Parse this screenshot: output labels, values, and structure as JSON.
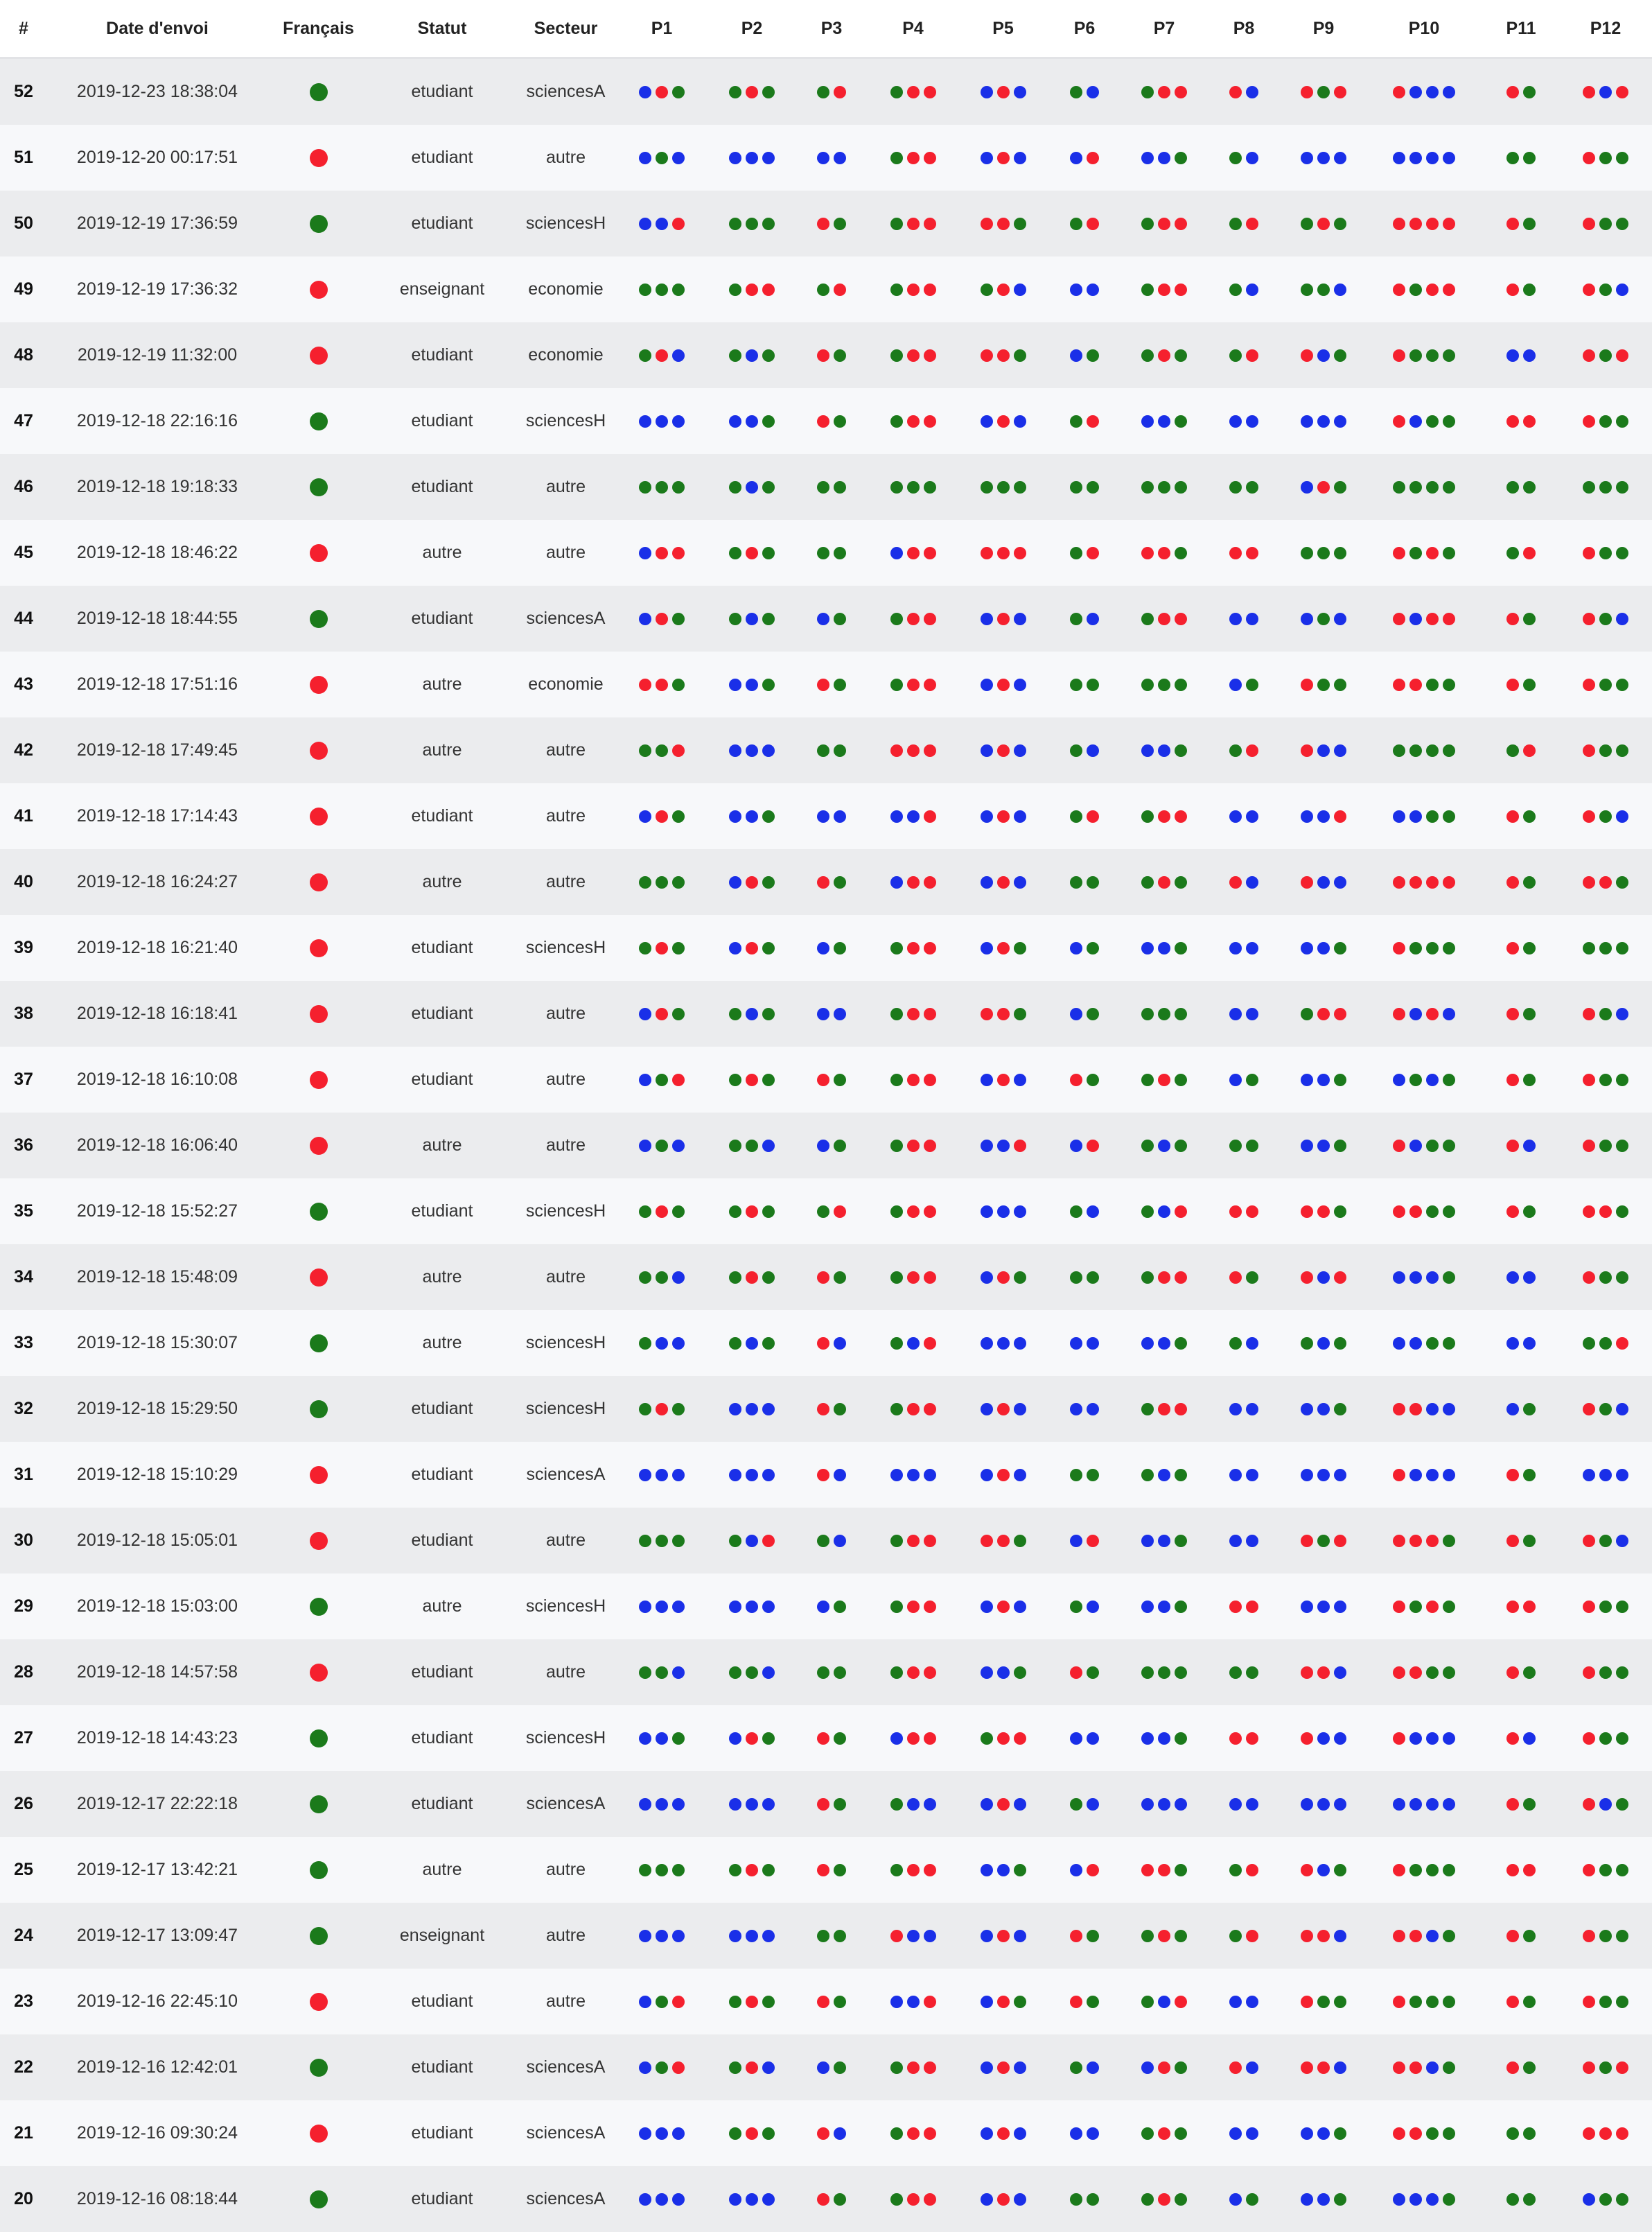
{
  "colors": {
    "green": "#1b7a1b",
    "red": "#f5202e",
    "blue": "#1a2fe8"
  },
  "headers": [
    "#",
    "Date d'envoi",
    "Français",
    "Statut",
    "Secteur",
    "P1",
    "P2",
    "P3",
    "P4",
    "P5",
    "P6",
    "P7",
    "P8",
    "P9",
    "P10",
    "P11",
    "P12"
  ],
  "rows": [
    {
      "num": "52",
      "date": "2019-12-23 18:38:04",
      "fr": "green",
      "statut": "etudiant",
      "secteur": "sciencesA",
      "p": [
        "brg",
        "grg",
        "gr",
        "grr",
        "brb",
        "gb",
        "grr",
        "rb",
        "rgr",
        "rbbb",
        "rg",
        "rbr"
      ]
    },
    {
      "num": "51",
      "date": "2019-12-20 00:17:51",
      "fr": "red",
      "statut": "etudiant",
      "secteur": "autre",
      "p": [
        "bgb",
        "bbb",
        "bb",
        "grr",
        "brb",
        "br",
        "bbg",
        "gb",
        "bbb",
        "bbbb",
        "gg",
        "rgg"
      ]
    },
    {
      "num": "50",
      "date": "2019-12-19 17:36:59",
      "fr": "green",
      "statut": "etudiant",
      "secteur": "sciencesH",
      "p": [
        "bbr",
        "ggg",
        "rg",
        "grr",
        "rrg",
        "gr",
        "grr",
        "gr",
        "grg",
        "rrrr",
        "rg",
        "rgg"
      ]
    },
    {
      "num": "49",
      "date": "2019-12-19 17:36:32",
      "fr": "red",
      "statut": "enseignant",
      "secteur": "economie",
      "p": [
        "ggg",
        "grr",
        "gr",
        "grr",
        "grb",
        "bb",
        "grr",
        "gb",
        "ggb",
        "rgrr",
        "rg",
        "rgb"
      ]
    },
    {
      "num": "48",
      "date": "2019-12-19 11:32:00",
      "fr": "red",
      "statut": "etudiant",
      "secteur": "economie",
      "p": [
        "grb",
        "gbg",
        "rg",
        "grr",
        "rrg",
        "bg",
        "grg",
        "gr",
        "rbg",
        "rggg",
        "bb",
        "rgr"
      ]
    },
    {
      "num": "47",
      "date": "2019-12-18 22:16:16",
      "fr": "green",
      "statut": "etudiant",
      "secteur": "sciencesH",
      "p": [
        "bbb",
        "bbg",
        "rg",
        "grr",
        "brb",
        "gr",
        "bbg",
        "bb",
        "bbb",
        "rbgg",
        "rr",
        "rgg"
      ]
    },
    {
      "num": "46",
      "date": "2019-12-18 19:18:33",
      "fr": "green",
      "statut": "etudiant",
      "secteur": "autre",
      "p": [
        "ggg",
        "gbg",
        "gg",
        "ggg",
        "ggg",
        "gg",
        "ggg",
        "gg",
        "brg",
        "gggg",
        "gg",
        "ggg"
      ]
    },
    {
      "num": "45",
      "date": "2019-12-18 18:46:22",
      "fr": "red",
      "statut": "autre",
      "secteur": "autre",
      "p": [
        "brr",
        "grg",
        "gg",
        "brr",
        "rrr",
        "gr",
        "rrg",
        "rr",
        "ggg",
        "rgrg",
        "gr",
        "rgg"
      ]
    },
    {
      "num": "44",
      "date": "2019-12-18 18:44:55",
      "fr": "green",
      "statut": "etudiant",
      "secteur": "sciencesA",
      "p": [
        "brg",
        "gbg",
        "bg",
        "grr",
        "brb",
        "gb",
        "grr",
        "bb",
        "bgb",
        "rbrr",
        "rg",
        "rgb"
      ]
    },
    {
      "num": "43",
      "date": "2019-12-18 17:51:16",
      "fr": "red",
      "statut": "autre",
      "secteur": "economie",
      "p": [
        "rrg",
        "bbg",
        "rg",
        "grr",
        "brb",
        "gg",
        "ggg",
        "bg",
        "rgg",
        "rrgg",
        "rg",
        "rgg"
      ]
    },
    {
      "num": "42",
      "date": "2019-12-18 17:49:45",
      "fr": "red",
      "statut": "autre",
      "secteur": "autre",
      "p": [
        "ggr",
        "bbb",
        "gg",
        "rrr",
        "brb",
        "gb",
        "bbg",
        "gr",
        "rbb",
        "gggg",
        "gr",
        "rgg"
      ]
    },
    {
      "num": "41",
      "date": "2019-12-18 17:14:43",
      "fr": "red",
      "statut": "etudiant",
      "secteur": "autre",
      "p": [
        "brg",
        "bbg",
        "bb",
        "bbr",
        "brb",
        "gr",
        "grr",
        "bb",
        "bbr",
        "bbgg",
        "rg",
        "rgb"
      ]
    },
    {
      "num": "40",
      "date": "2019-12-18 16:24:27",
      "fr": "red",
      "statut": "autre",
      "secteur": "autre",
      "p": [
        "ggg",
        "brg",
        "rg",
        "brr",
        "brb",
        "gg",
        "grg",
        "rb",
        "rbb",
        "rrrr",
        "rg",
        "rrg"
      ]
    },
    {
      "num": "39",
      "date": "2019-12-18 16:21:40",
      "fr": "red",
      "statut": "etudiant",
      "secteur": "sciencesH",
      "p": [
        "grg",
        "brg",
        "bg",
        "grr",
        "brg",
        "bg",
        "bbg",
        "bb",
        "bbg",
        "rggg",
        "rg",
        "ggg"
      ]
    },
    {
      "num": "38",
      "date": "2019-12-18 16:18:41",
      "fr": "red",
      "statut": "etudiant",
      "secteur": "autre",
      "p": [
        "brg",
        "gbg",
        "bb",
        "grr",
        "rrg",
        "bg",
        "ggg",
        "bb",
        "grr",
        "rbrb",
        "rg",
        "rgb"
      ]
    },
    {
      "num": "37",
      "date": "2019-12-18 16:10:08",
      "fr": "red",
      "statut": "etudiant",
      "secteur": "autre",
      "p": [
        "bgr",
        "grg",
        "rg",
        "grr",
        "brb",
        "rg",
        "grg",
        "bg",
        "bbg",
        "bgbg",
        "rg",
        "rgg"
      ]
    },
    {
      "num": "36",
      "date": "2019-12-18 16:06:40",
      "fr": "red",
      "statut": "autre",
      "secteur": "autre",
      "p": [
        "bgb",
        "ggb",
        "bg",
        "grr",
        "bbr",
        "br",
        "gbg",
        "gg",
        "bbg",
        "rbgg",
        "rb",
        "rgg"
      ]
    },
    {
      "num": "35",
      "date": "2019-12-18 15:52:27",
      "fr": "green",
      "statut": "etudiant",
      "secteur": "sciencesH",
      "p": [
        "grg",
        "grg",
        "gr",
        "grr",
        "bbb",
        "gb",
        "gbr",
        "rr",
        "rrg",
        "rrgg",
        "rg",
        "rrg"
      ]
    },
    {
      "num": "34",
      "date": "2019-12-18 15:48:09",
      "fr": "red",
      "statut": "autre",
      "secteur": "autre",
      "p": [
        "ggb",
        "grg",
        "rg",
        "grr",
        "brg",
        "gg",
        "grr",
        "rg",
        "rbr",
        "bbbg",
        "bb",
        "rgg"
      ]
    },
    {
      "num": "33",
      "date": "2019-12-18 15:30:07",
      "fr": "green",
      "statut": "autre",
      "secteur": "sciencesH",
      "p": [
        "gbb",
        "gbg",
        "rb",
        "gbr",
        "bbb",
        "bb",
        "bbg",
        "gb",
        "gbg",
        "bbgg",
        "bb",
        "ggr"
      ]
    },
    {
      "num": "32",
      "date": "2019-12-18 15:29:50",
      "fr": "green",
      "statut": "etudiant",
      "secteur": "sciencesH",
      "p": [
        "grg",
        "bbb",
        "rg",
        "grr",
        "brb",
        "bb",
        "grr",
        "bb",
        "bbg",
        "rrbb",
        "bg",
        "rgb"
      ]
    },
    {
      "num": "31",
      "date": "2019-12-18 15:10:29",
      "fr": "red",
      "statut": "etudiant",
      "secteur": "sciencesA",
      "p": [
        "bbb",
        "bbb",
        "rb",
        "bbb",
        "brb",
        "gg",
        "gbg",
        "bb",
        "bbb",
        "rbbb",
        "rg",
        "bbb"
      ]
    },
    {
      "num": "30",
      "date": "2019-12-18 15:05:01",
      "fr": "red",
      "statut": "etudiant",
      "secteur": "autre",
      "p": [
        "ggg",
        "gbr",
        "gb",
        "grr",
        "rrg",
        "br",
        "bbg",
        "bb",
        "rgr",
        "rrrg",
        "rg",
        "rgb"
      ]
    },
    {
      "num": "29",
      "date": "2019-12-18 15:03:00",
      "fr": "green",
      "statut": "autre",
      "secteur": "sciencesH",
      "p": [
        "bbb",
        "bbb",
        "bg",
        "grr",
        "brb",
        "gb",
        "bbg",
        "rr",
        "bbb",
        "rgrg",
        "rr",
        "rgg"
      ]
    },
    {
      "num": "28",
      "date": "2019-12-18 14:57:58",
      "fr": "red",
      "statut": "etudiant",
      "secteur": "autre",
      "p": [
        "ggb",
        "ggb",
        "gg",
        "grr",
        "bbg",
        "rg",
        "ggg",
        "gg",
        "rrb",
        "rrgg",
        "rg",
        "rgg"
      ]
    },
    {
      "num": "27",
      "date": "2019-12-18 14:43:23",
      "fr": "green",
      "statut": "etudiant",
      "secteur": "sciencesH",
      "p": [
        "bbg",
        "brg",
        "rg",
        "brr",
        "grr",
        "bb",
        "bbg",
        "rr",
        "rbb",
        "rbbb",
        "rb",
        "rgg"
      ]
    },
    {
      "num": "26",
      "date": "2019-12-17 22:22:18",
      "fr": "green",
      "statut": "etudiant",
      "secteur": "sciencesA",
      "p": [
        "bbb",
        "bbb",
        "rg",
        "gbb",
        "brb",
        "gb",
        "bbb",
        "bb",
        "bbb",
        "bbbb",
        "rg",
        "rbg"
      ]
    },
    {
      "num": "25",
      "date": "2019-12-17 13:42:21",
      "fr": "green",
      "statut": "autre",
      "secteur": "autre",
      "p": [
        "ggg",
        "grg",
        "rg",
        "grr",
        "bbg",
        "br",
        "rrg",
        "gr",
        "rbg",
        "rggg",
        "rr",
        "rgg"
      ]
    },
    {
      "num": "24",
      "date": "2019-12-17 13:09:47",
      "fr": "green",
      "statut": "enseignant",
      "secteur": "autre",
      "p": [
        "bbb",
        "bbb",
        "gg",
        "rbb",
        "brb",
        "rg",
        "grg",
        "gr",
        "rrb",
        "rrbg",
        "rg",
        "rgg"
      ]
    },
    {
      "num": "23",
      "date": "2019-12-16 22:45:10",
      "fr": "red",
      "statut": "etudiant",
      "secteur": "autre",
      "p": [
        "bgr",
        "grg",
        "rg",
        "bbr",
        "brg",
        "rg",
        "gbr",
        "bb",
        "rgg",
        "rggg",
        "rg",
        "rgg"
      ]
    },
    {
      "num": "22",
      "date": "2019-12-16 12:42:01",
      "fr": "green",
      "statut": "etudiant",
      "secteur": "sciencesA",
      "p": [
        "bgr",
        "grb",
        "bg",
        "grr",
        "brb",
        "gb",
        "brg",
        "rb",
        "rrb",
        "rrbg",
        "rg",
        "rgr"
      ]
    },
    {
      "num": "21",
      "date": "2019-12-16 09:30:24",
      "fr": "red",
      "statut": "etudiant",
      "secteur": "sciencesA",
      "p": [
        "bbb",
        "grg",
        "rb",
        "grr",
        "brb",
        "bb",
        "grg",
        "bb",
        "bbg",
        "rrgg",
        "gg",
        "rrr"
      ]
    },
    {
      "num": "20",
      "date": "2019-12-16 08:18:44",
      "fr": "green",
      "statut": "etudiant",
      "secteur": "sciencesA",
      "p": [
        "bbb",
        "bbb",
        "rg",
        "grr",
        "brb",
        "gg",
        "grg",
        "bg",
        "bbg",
        "bbbg",
        "gg",
        "bgg"
      ]
    }
  ]
}
